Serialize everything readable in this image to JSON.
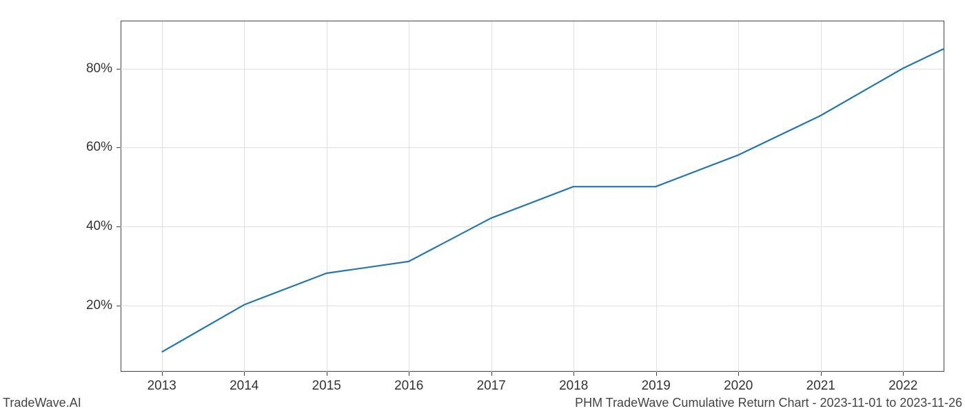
{
  "chart": {
    "type": "line",
    "x_values": [
      2013,
      2014,
      2015,
      2016,
      2017,
      2018,
      2019,
      2020,
      2021,
      2022,
      2022.5
    ],
    "y_values": [
      8,
      20,
      28,
      31,
      42,
      50,
      50,
      58,
      68,
      80,
      85
    ],
    "xlim": [
      2012.5,
      2022.5
    ],
    "ylim": [
      3,
      92
    ],
    "xticks": [
      2013,
      2014,
      2015,
      2016,
      2017,
      2018,
      2019,
      2020,
      2021,
      2022
    ],
    "xtick_labels": [
      "2013",
      "2014",
      "2015",
      "2016",
      "2017",
      "2018",
      "2019",
      "2020",
      "2021",
      "2022"
    ],
    "yticks": [
      20,
      40,
      60,
      80
    ],
    "ytick_labels": [
      "20%",
      "40%",
      "60%",
      "80%"
    ],
    "line_color": "#1f77b4",
    "line_width": 2.2,
    "grid_color": "#e0e0e0",
    "spine_color": "#444444",
    "background_color": "#ffffff",
    "tick_fontsize": 19,
    "show_top_spine": true,
    "show_right_spine": true
  },
  "footer": {
    "left_text": "TradeWave.AI",
    "right_text": "PHM TradeWave Cumulative Return Chart - 2023-11-01 to 2023-11-26",
    "fontsize": 18,
    "color": "#444444"
  }
}
